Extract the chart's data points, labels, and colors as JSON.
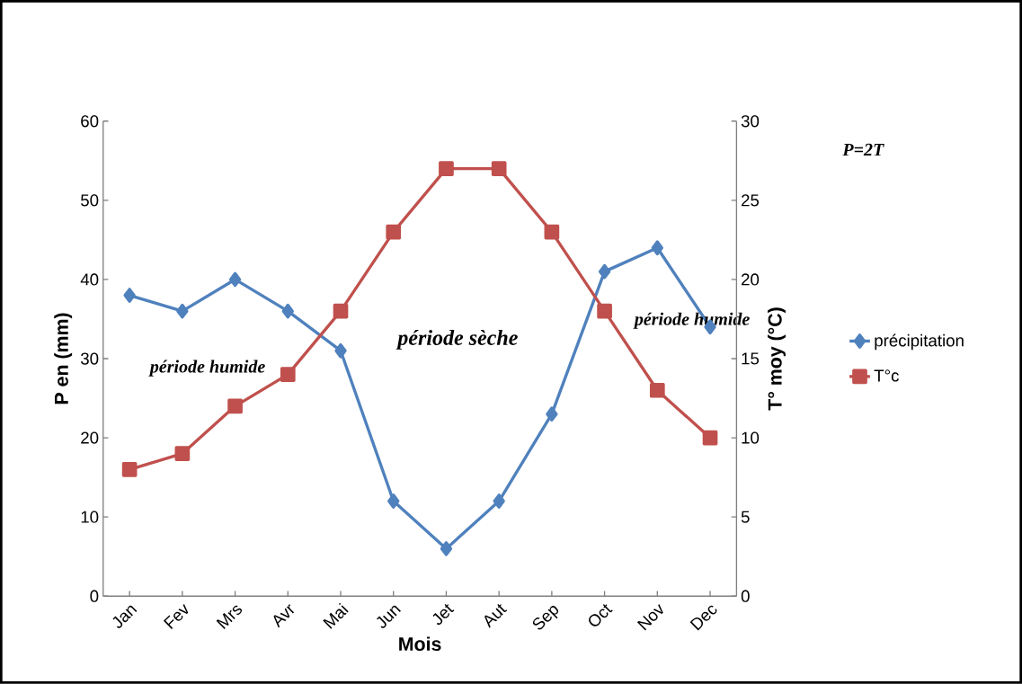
{
  "chart_data": {
    "type": "line",
    "xlabel": "Mois",
    "ylabel": "P en (mm)",
    "y2label": "T° moy (°C)",
    "categories": [
      "Jan",
      "Fev",
      "Mrs",
      "Avr",
      "Mai",
      "Jun",
      "Jet",
      "Aut",
      "Sep",
      "Oct",
      "Nov",
      "Dec"
    ],
    "series": [
      {
        "name": "précipitation",
        "color": "#4f81bd",
        "marker": "diamond",
        "values": [
          38,
          36,
          40,
          36,
          31,
          12,
          6,
          12,
          23,
          41,
          44,
          34
        ]
      },
      {
        "name": "T°c",
        "color": "#c0504d",
        "marker": "square",
        "axis": "y2",
        "values": [
          8,
          9,
          12,
          14,
          18,
          23,
          27,
          27,
          23,
          18,
          13,
          10
        ]
      }
    ],
    "ylim": [
      0,
      60
    ],
    "yticks": [
      0,
      10,
      20,
      30,
      40,
      50,
      60
    ],
    "y2lim": [
      0,
      30
    ],
    "y2ticks": [
      0,
      5,
      10,
      15,
      20,
      25,
      30
    ],
    "legend": "right",
    "line_style": "solid",
    "annotations": [
      "période humide",
      "période sèche",
      "période humide",
      "P=2T"
    ]
  }
}
